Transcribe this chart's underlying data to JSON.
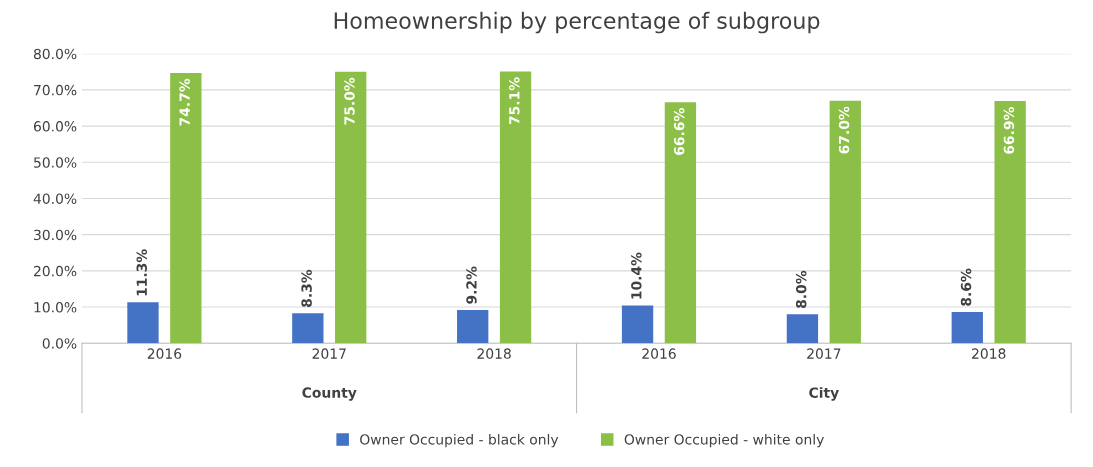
{
  "chart_data": {
    "type": "bar",
    "title": "Homeownership by percentage of subgroup",
    "categories": [
      "2016",
      "2017",
      "2018",
      "2016",
      "2017",
      "2018"
    ],
    "annotations": [
      "County",
      "City"
    ],
    "series": [
      {
        "name": "Owner Occupied - black only",
        "color": "#4472c4",
        "values": [
          11.3,
          8.3,
          9.2,
          10.4,
          8.0,
          8.6
        ],
        "value_labels": [
          "11.3%",
          "8.3%",
          "9.2%",
          "10.4%",
          "8.0%",
          "8.6%"
        ]
      },
      {
        "name": "Owner Occupied - white only",
        "color": "#8cbf47",
        "values": [
          74.7,
          75.0,
          75.1,
          66.6,
          67.0,
          66.9
        ],
        "value_labels": [
          "74.7%",
          "75.0%",
          "75.1%",
          "66.6%",
          "67.0%",
          "66.9%"
        ]
      }
    ],
    "ylim": [
      0,
      80
    ],
    "yticks": [
      {
        "value": 0,
        "label": "0.0%"
      },
      {
        "value": 10,
        "label": "10.0%"
      },
      {
        "value": 20,
        "label": "20.0%"
      },
      {
        "value": 30,
        "label": "30.0%"
      },
      {
        "value": 40,
        "label": "40.0%"
      },
      {
        "value": 50,
        "label": "50.0%"
      },
      {
        "value": 60,
        "label": "60.0%"
      },
      {
        "value": 70,
        "label": "70.0%"
      },
      {
        "value": 80,
        "label": "80.0%"
      }
    ],
    "grid": "y",
    "legend": "bottom"
  }
}
